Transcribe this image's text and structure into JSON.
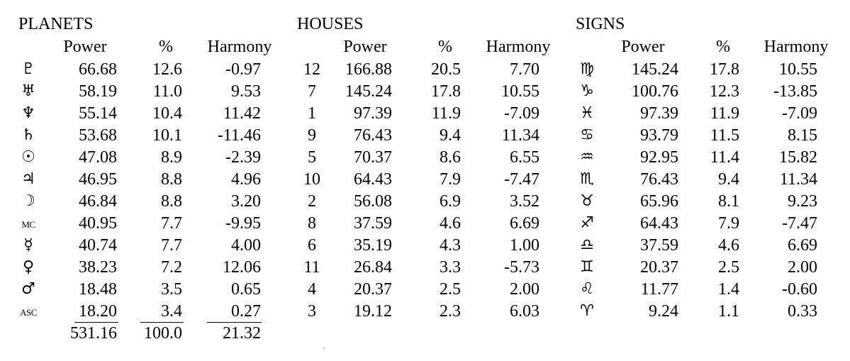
{
  "planets": {
    "title": "PLANETS",
    "headers": [
      "Power",
      "%",
      "Harmony"
    ],
    "rows": [
      {
        "symbol": "♇",
        "power": "66.68",
        "pct": "12.6",
        "harmony": "-0.97"
      },
      {
        "symbol": "♅",
        "power": "58.19",
        "pct": "11.0",
        "harmony": "9.53"
      },
      {
        "symbol": "♆",
        "power": "55.14",
        "pct": "10.4",
        "harmony": "11.42"
      },
      {
        "symbol": "♄",
        "power": "53.68",
        "pct": "10.1",
        "harmony": "-11.46"
      },
      {
        "symbol": "☉",
        "power": "47.08",
        "pct": "8.9",
        "harmony": "-2.39"
      },
      {
        "symbol": "♃",
        "power": "46.95",
        "pct": "8.8",
        "harmony": "4.96"
      },
      {
        "symbol": "☽",
        "power": "46.84",
        "pct": "8.8",
        "harmony": "3.20"
      },
      {
        "symbol": "MC",
        "power": "40.95",
        "pct": "7.7",
        "harmony": "-9.95"
      },
      {
        "symbol": "☿",
        "power": "40.74",
        "pct": "7.7",
        "harmony": "4.00"
      },
      {
        "symbol": "♀",
        "power": "38.23",
        "pct": "7.2",
        "harmony": "12.06"
      },
      {
        "symbol": "♂",
        "power": "18.48",
        "pct": "3.5",
        "harmony": "0.65"
      },
      {
        "symbol": "ASC",
        "power": "18.20",
        "pct": "3.4",
        "harmony": "0.27"
      }
    ],
    "totals": {
      "power": "531.16",
      "pct": "100.0",
      "harmony": "21.32"
    }
  },
  "houses": {
    "title": "HOUSES",
    "headers": [
      "Power",
      "%",
      "Harmony"
    ],
    "rows": [
      {
        "house": "12",
        "power": "166.88",
        "pct": "20.5",
        "harmony": "7.70"
      },
      {
        "house": "7",
        "power": "145.24",
        "pct": "17.8",
        "harmony": "10.55"
      },
      {
        "house": "1",
        "power": "97.39",
        "pct": "11.9",
        "harmony": "-7.09"
      },
      {
        "house": "9",
        "power": "76.43",
        "pct": "9.4",
        "harmony": "11.34"
      },
      {
        "house": "5",
        "power": "70.37",
        "pct": "8.6",
        "harmony": "6.55"
      },
      {
        "house": "10",
        "power": "64.43",
        "pct": "7.9",
        "harmony": "-7.47"
      },
      {
        "house": "2",
        "power": "56.08",
        "pct": "6.9",
        "harmony": "3.52"
      },
      {
        "house": "8",
        "power": "37.59",
        "pct": "4.6",
        "harmony": "6.69"
      },
      {
        "house": "6",
        "power": "35.19",
        "pct": "4.3",
        "harmony": "1.00"
      },
      {
        "house": "11",
        "power": "26.84",
        "pct": "3.3",
        "harmony": "-5.73"
      },
      {
        "house": "4",
        "power": "20.37",
        "pct": "2.5",
        "harmony": "2.00"
      },
      {
        "house": "3",
        "power": "19.12",
        "pct": "2.3",
        "harmony": "6.03"
      }
    ]
  },
  "signs": {
    "title": "SIGNS",
    "headers": [
      "Power",
      "%",
      "Harmony"
    ],
    "rows": [
      {
        "symbol": "♍",
        "power": "145.24",
        "pct": "17.8",
        "harmony": "10.55"
      },
      {
        "symbol": "♑",
        "power": "100.76",
        "pct": "12.3",
        "harmony": "-13.85"
      },
      {
        "symbol": "♓",
        "power": "97.39",
        "pct": "11.9",
        "harmony": "-7.09"
      },
      {
        "symbol": "♋",
        "power": "93.79",
        "pct": "11.5",
        "harmony": "8.15"
      },
      {
        "symbol": "♒",
        "power": "92.95",
        "pct": "11.4",
        "harmony": "15.82"
      },
      {
        "symbol": "♏",
        "power": "76.43",
        "pct": "9.4",
        "harmony": "11.34"
      },
      {
        "symbol": "♉",
        "power": "65.96",
        "pct": "8.1",
        "harmony": "9.23"
      },
      {
        "symbol": "♐",
        "power": "64.43",
        "pct": "7.9",
        "harmony": "-7.47"
      },
      {
        "symbol": "♎",
        "power": "37.59",
        "pct": "4.6",
        "harmony": "6.69"
      },
      {
        "symbol": "♊",
        "power": "20.37",
        "pct": "2.5",
        "harmony": "2.00"
      },
      {
        "symbol": "♌",
        "power": "11.77",
        "pct": "1.4",
        "harmony": "-0.60"
      },
      {
        "symbol": "♈",
        "power": "9.24",
        "pct": "1.1",
        "harmony": "0.33"
      }
    ]
  }
}
